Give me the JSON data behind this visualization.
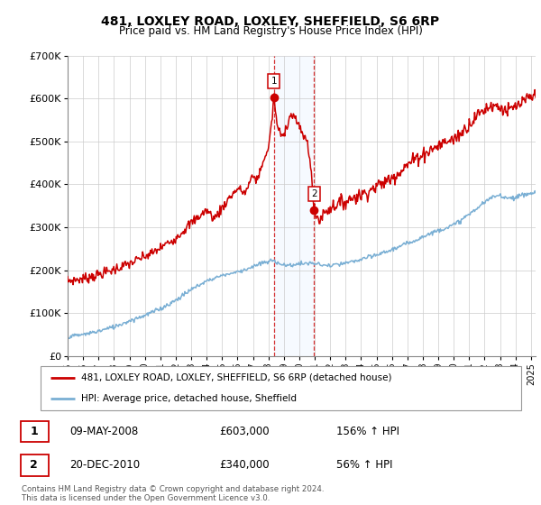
{
  "title": "481, LOXLEY ROAD, LOXLEY, SHEFFIELD, S6 6RP",
  "subtitle": "Price paid vs. HM Land Registry's House Price Index (HPI)",
  "legend_line1": "481, LOXLEY ROAD, LOXLEY, SHEFFIELD, S6 6RP (detached house)",
  "legend_line2": "HPI: Average price, detached house, Sheffield",
  "transaction1_label": "1",
  "transaction1_date": "09-MAY-2008",
  "transaction1_price": "£603,000",
  "transaction1_hpi": "156% ↑ HPI",
  "transaction2_label": "2",
  "transaction2_date": "20-DEC-2010",
  "transaction2_price": "£340,000",
  "transaction2_hpi": "56% ↑ HPI",
  "footer": "Contains HM Land Registry data © Crown copyright and database right 2024.\nThis data is licensed under the Open Government Licence v3.0.",
  "red_color": "#cc0000",
  "blue_color": "#7aafd4",
  "shading_color": "#ddeeff",
  "ylim_min": 0,
  "ylim_max": 700000,
  "yticks": [
    0,
    100000,
    200000,
    300000,
    400000,
    500000,
    600000,
    700000
  ],
  "ytick_labels": [
    "£0",
    "£100K",
    "£200K",
    "£300K",
    "£400K",
    "£500K",
    "£600K",
    "£700K"
  ],
  "transaction1_x": 2008.35,
  "transaction1_y": 603000,
  "transaction2_x": 2010.96,
  "transaction2_y": 340000,
  "marker_color": "#cc0000",
  "box_color": "#cc0000",
  "xlim_min": 1995,
  "xlim_max": 2025.3
}
